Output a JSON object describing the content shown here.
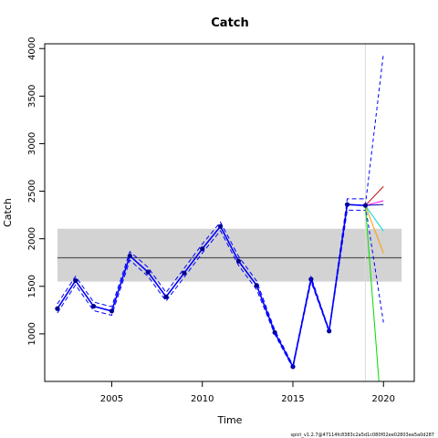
{
  "chart_data": {
    "type": "line",
    "title": "Catch",
    "xlabel": "Time",
    "ylabel": "Catch",
    "xlim": [
      2001.3,
      2021.7
    ],
    "ylim": [
      500,
      4050
    ],
    "x_ticks": [
      2005,
      2010,
      2015,
      2020
    ],
    "y_ticks": [
      1000,
      1500,
      2000,
      2500,
      3000,
      3500,
      4000
    ],
    "grid": false,
    "legend": "none",
    "reference_band": {
      "x": [
        2002,
        2021
      ],
      "y": [
        1550,
        2105
      ],
      "color": "#d3d3d3"
    },
    "mean_line": {
      "x": [
        2002,
        2021
      ],
      "y": 1800,
      "color": "#555555"
    },
    "vertical_line": {
      "x": 2019,
      "color": "#d9d9d9"
    },
    "series": [
      {
        "role": "observed",
        "color": "#0000ff",
        "x": [
          2002,
          2003,
          2004,
          2005,
          2006,
          2007,
          2008,
          2009,
          2010,
          2011,
          2012,
          2013,
          2014,
          2015,
          2016,
          2017,
          2018,
          2019
        ],
        "y": [
          1265,
          1560,
          1290,
          1240,
          1820,
          1650,
          1390,
          1640,
          1895,
          2130,
          1765,
          1510,
          1015,
          655,
          1575,
          1030,
          2360,
          2350
        ]
      },
      {
        "role": "upper",
        "color": "#0000ff",
        "dashed": true,
        "x": [
          2002,
          2003,
          2004,
          2005,
          2006,
          2007,
          2008,
          2009,
          2010,
          2011,
          2012,
          2013,
          2014,
          2015,
          2016,
          2017,
          2018,
          2019
        ],
        "y": [
          1315,
          1605,
          1335,
          1285,
          1865,
          1700,
          1435,
          1690,
          1945,
          2175,
          1815,
          1555,
          1040,
          670,
          1600,
          1040,
          2420,
          2420
        ]
      },
      {
        "role": "lower",
        "color": "#0000ff",
        "dashed": true,
        "x": [
          2002,
          2003,
          2004,
          2005,
          2006,
          2007,
          2008,
          2009,
          2010,
          2011,
          2012,
          2013,
          2014,
          2015,
          2016,
          2017,
          2018,
          2019
        ],
        "y": [
          1220,
          1515,
          1245,
          1195,
          1775,
          1605,
          1345,
          1595,
          1850,
          2085,
          1720,
          1465,
          995,
          640,
          1550,
          1020,
          2300,
          2300
        ]
      }
    ],
    "projections": [
      {
        "color": "#0000ff",
        "dashed": true,
        "x": [
          2019,
          2020
        ],
        "y": [
          2350,
          3950
        ]
      },
      {
        "color": "#0000ff",
        "dashed": true,
        "x": [
          2019,
          2020
        ],
        "y": [
          2350,
          1120
        ]
      },
      {
        "color": "#00dd00",
        "x": [
          2019,
          2019.75
        ],
        "y": [
          2350,
          500
        ]
      },
      {
        "color": "#00dddd",
        "x": [
          2019,
          2020
        ],
        "y": [
          2350,
          2080
        ]
      },
      {
        "color": "#ff9900",
        "x": [
          2019,
          2020
        ],
        "y": [
          2350,
          1850
        ]
      },
      {
        "color": "#ff00ff",
        "x": [
          2019,
          2020
        ],
        "y": [
          2350,
          2400
        ]
      },
      {
        "color": "#bb0000",
        "x": [
          2019,
          2020
        ],
        "y": [
          2350,
          2550
        ]
      },
      {
        "color": "#0000aa",
        "x": [
          2019,
          2020
        ],
        "y": [
          2350,
          2360
        ]
      }
    ],
    "footnote": "spict_v1.2.7@47114fc8383c2a5d1c080f02ee02803ea5a0d287"
  }
}
